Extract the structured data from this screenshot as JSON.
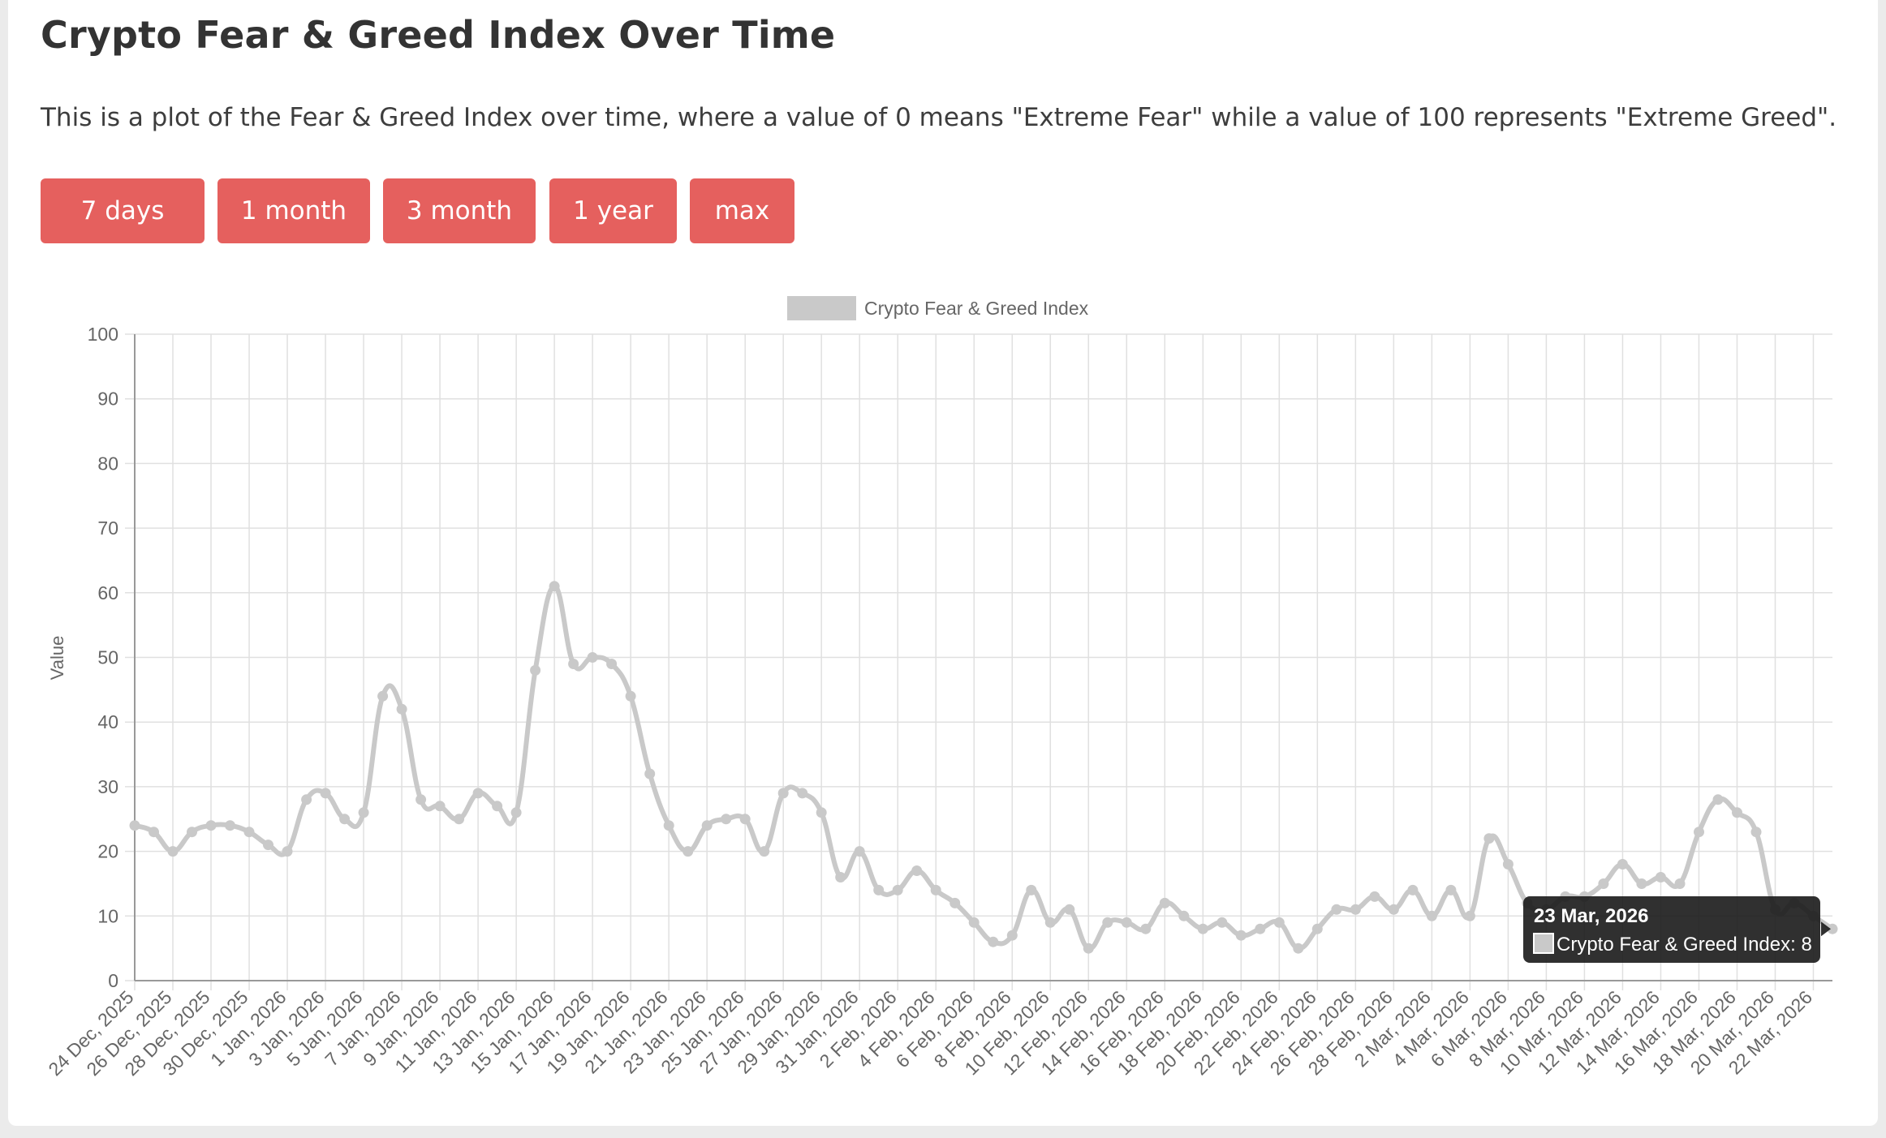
{
  "page": {
    "title": "Crypto Fear & Greed Index Over Time",
    "description": "This is a plot of the Fear & Greed Index over time, where a value of 0 means \"Extreme Fear\" while a value of 100 represents \"Extreme Greed\"."
  },
  "range_buttons": [
    "7 days",
    "1 month",
    "3 month",
    "1 year",
    "max"
  ],
  "colors": {
    "button": "#e5605e",
    "series": "#c9c9c9",
    "grid": "#e0e0e0",
    "tooltip_bg": "#1a1a1a"
  },
  "tooltip": {
    "title": "23 Mar, 2026",
    "label": "Crypto Fear & Greed Index: 8"
  },
  "chart_data": {
    "type": "line",
    "title": "",
    "xlabel": "",
    "ylabel": "Value",
    "ylim": [
      0,
      100
    ],
    "yticks": [
      0,
      10,
      20,
      30,
      40,
      50,
      60,
      70,
      80,
      90,
      100
    ],
    "grid": true,
    "legend": "top-center",
    "x": [
      "24 Dec, 2025",
      "25 Dec, 2025",
      "26 Dec, 2025",
      "27 Dec, 2025",
      "28 Dec, 2025",
      "29 Dec, 2025",
      "30 Dec, 2025",
      "31 Dec, 2025",
      "1 Jan, 2026",
      "2 Jan, 2026",
      "3 Jan, 2026",
      "4 Jan, 2026",
      "5 Jan, 2026",
      "6 Jan, 2026",
      "7 Jan, 2026",
      "8 Jan, 2026",
      "9 Jan, 2026",
      "10 Jan, 2026",
      "11 Jan, 2026",
      "12 Jan, 2026",
      "13 Jan, 2026",
      "14 Jan, 2026",
      "15 Jan, 2026",
      "16 Jan, 2026",
      "17 Jan, 2026",
      "18 Jan, 2026",
      "19 Jan, 2026",
      "20 Jan, 2026",
      "21 Jan, 2026",
      "22 Jan, 2026",
      "23 Jan, 2026",
      "24 Jan, 2026",
      "25 Jan, 2026",
      "26 Jan, 2026",
      "27 Jan, 2026",
      "28 Jan, 2026",
      "29 Jan, 2026",
      "30 Jan, 2026",
      "31 Jan, 2026",
      "1 Feb, 2026",
      "2 Feb, 2026",
      "3 Feb, 2026",
      "4 Feb, 2026",
      "5 Feb, 2026",
      "6 Feb, 2026",
      "7 Feb, 2026",
      "8 Feb, 2026",
      "9 Feb, 2026",
      "10 Feb, 2026",
      "11 Feb, 2026",
      "12 Feb, 2026",
      "13 Feb, 2026",
      "14 Feb, 2026",
      "15 Feb, 2026",
      "16 Feb, 2026",
      "17 Feb, 2026",
      "18 Feb, 2026",
      "19 Feb, 2026",
      "20 Feb, 2026",
      "21 Feb, 2026",
      "22 Feb, 2026",
      "23 Feb, 2026",
      "24 Feb, 2026",
      "25 Feb, 2026",
      "26 Feb, 2026",
      "27 Feb, 2026",
      "28 Feb, 2026",
      "1 Mar, 2026",
      "2 Mar, 2026",
      "3 Mar, 2026",
      "4 Mar, 2026",
      "5 Mar, 2026",
      "6 Mar, 2026",
      "7 Mar, 2026",
      "8 Mar, 2026",
      "9 Mar, 2026",
      "10 Mar, 2026",
      "11 Mar, 2026",
      "12 Mar, 2026",
      "13 Mar, 2026",
      "14 Mar, 2026",
      "15 Mar, 2026",
      "16 Mar, 2026",
      "17 Mar, 2026",
      "18 Mar, 2026",
      "19 Mar, 2026",
      "20 Mar, 2026",
      "21 Mar, 2026",
      "22 Mar, 2026",
      "23 Mar, 2026"
    ],
    "x_tick_labels": [
      "24 Dec, 2025",
      "26 Dec, 2025",
      "28 Dec, 2025",
      "30 Dec, 2025",
      "1 Jan, 2026",
      "3 Jan, 2026",
      "5 Jan, 2026",
      "7 Jan, 2026",
      "9 Jan, 2026",
      "11 Jan, 2026",
      "13 Jan, 2026",
      "15 Jan, 2026",
      "17 Jan, 2026",
      "19 Jan, 2026",
      "21 Jan, 2026",
      "23 Jan, 2026",
      "25 Jan, 2026",
      "27 Jan, 2026",
      "29 Jan, 2026",
      "31 Jan, 2026",
      "2 Feb, 2026",
      "4 Feb, 2026",
      "6 Feb, 2026",
      "8 Feb, 2026",
      "10 Feb, 2026",
      "12 Feb, 2026",
      "14 Feb, 2026",
      "16 Feb, 2026",
      "18 Feb, 2026",
      "20 Feb, 2026",
      "22 Feb, 2026",
      "24 Feb, 2026",
      "26 Feb, 2026",
      "28 Feb, 2026",
      "2 Mar, 2026",
      "4 Mar, 2026",
      "6 Mar, 2026",
      "8 Mar, 2026",
      "10 Mar, 2026",
      "12 Mar, 2026",
      "14 Mar, 2026",
      "16 Mar, 2026",
      "18 Mar, 2026",
      "20 Mar, 2026",
      "22 Mar, 2026"
    ],
    "series": [
      {
        "name": "Crypto Fear & Greed Index",
        "values": [
          24,
          23,
          20,
          23,
          24,
          24,
          23,
          21,
          20,
          28,
          29,
          25,
          26,
          44,
          42,
          28,
          27,
          25,
          29,
          27,
          26,
          48,
          61,
          49,
          50,
          49,
          44,
          32,
          24,
          20,
          24,
          25,
          25,
          20,
          29,
          29,
          26,
          16,
          20,
          14,
          14,
          17,
          14,
          12,
          9,
          6,
          7,
          14,
          9,
          11,
          5,
          9,
          9,
          8,
          12,
          10,
          8,
          9,
          7,
          8,
          9,
          5,
          8,
          11,
          11,
          13,
          11,
          14,
          10,
          14,
          10,
          22,
          18,
          12,
          11,
          13,
          13,
          15,
          18,
          15,
          16,
          15,
          23,
          28,
          26,
          23,
          11,
          12,
          10,
          8
        ]
      }
    ]
  }
}
